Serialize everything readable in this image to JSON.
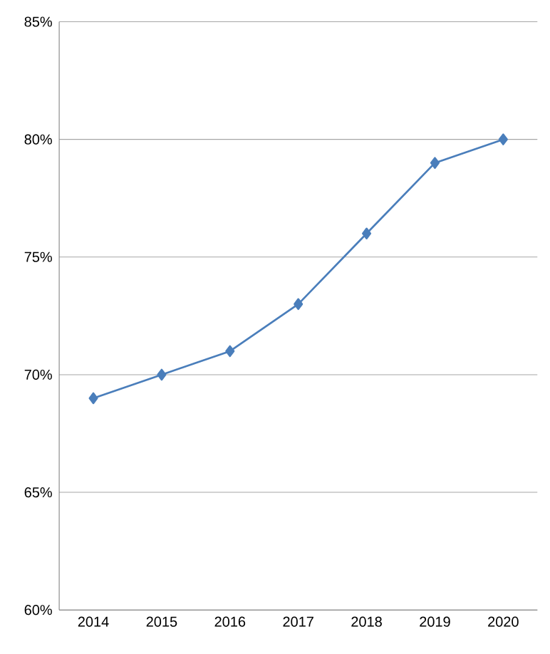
{
  "chart_data": {
    "type": "line",
    "categories": [
      "2014",
      "2015",
      "2016",
      "2017",
      "2018",
      "2019",
      "2020"
    ],
    "values": [
      69,
      70,
      71,
      73,
      76,
      79,
      80
    ],
    "color": "#4a7ebb",
    "marker": "diamond",
    "grid": "y",
    "ylim": [
      60,
      85
    ],
    "yticks": [
      {
        "value": 60,
        "label": "60%"
      },
      {
        "value": 65,
        "label": "65%"
      },
      {
        "value": 70,
        "label": "70%"
      },
      {
        "value": 75,
        "label": "75%"
      },
      {
        "value": 80,
        "label": "80%"
      },
      {
        "value": 85,
        "label": "85%"
      }
    ]
  }
}
